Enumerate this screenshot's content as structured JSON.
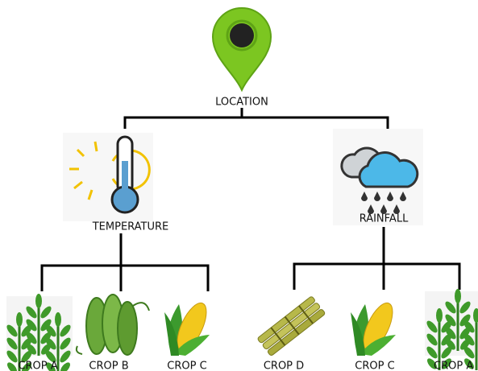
{
  "root": {
    "label": "LOCATION"
  },
  "factors": [
    {
      "label": "TEMPERATURE",
      "crops": [
        "CROP A",
        "CROP B",
        "CROP C"
      ]
    },
    {
      "label": "RAINFALL",
      "crops": [
        "CROP D",
        "CROP C",
        "CROP A"
      ]
    }
  ]
}
